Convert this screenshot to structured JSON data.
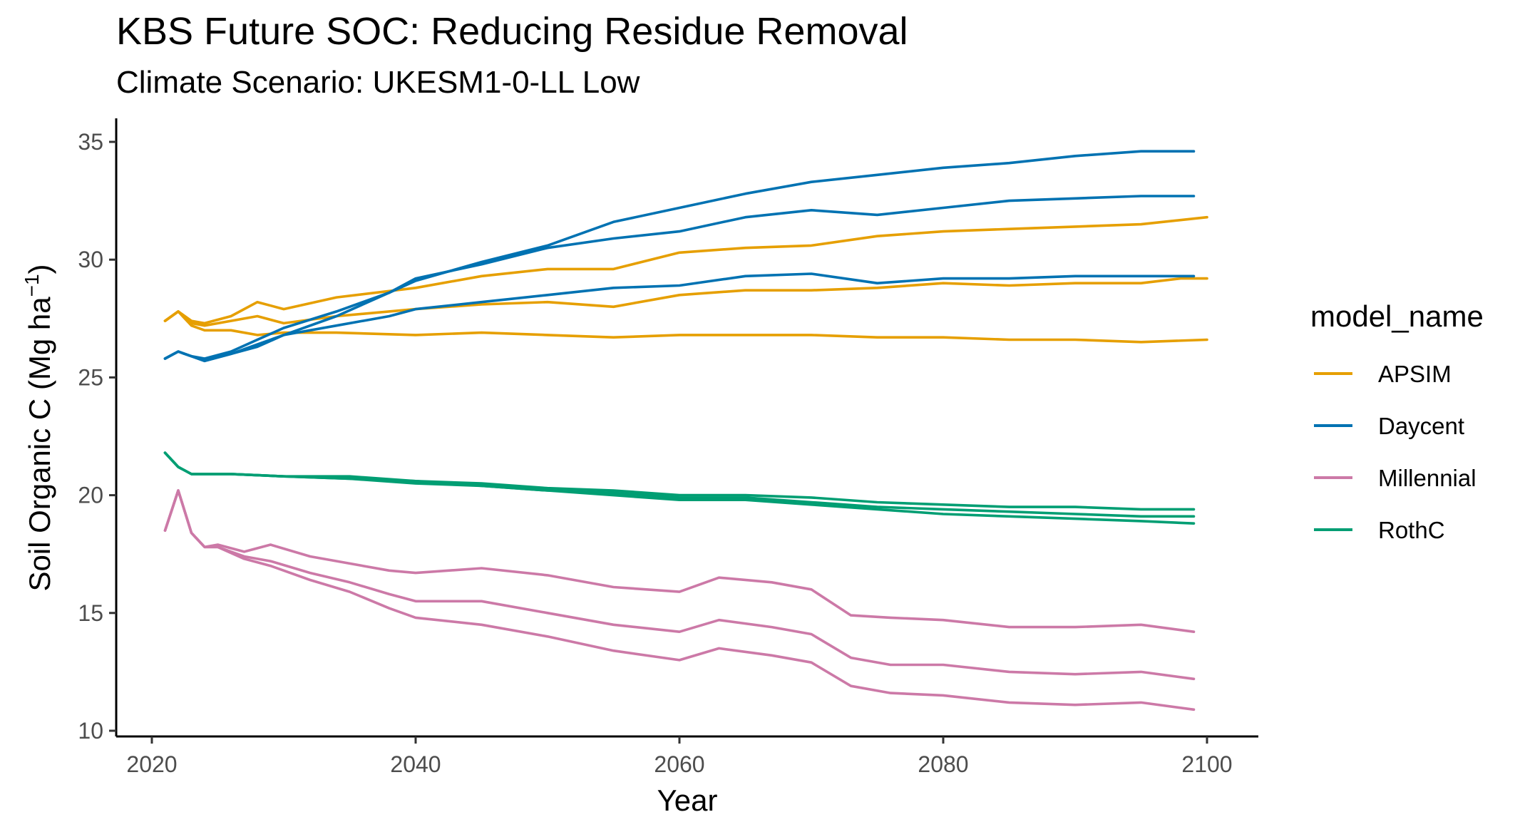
{
  "chart_data": {
    "type": "line",
    "title": "KBS  Future SOC: Reducing Residue Removal",
    "subtitle": "Climate Scenario: UKESM1-0-LL Low",
    "xlabel": "Year",
    "ylabel_prefix": "Soil Organic C (Mg ha",
    "ylabel_exponent": "−1",
    "ylabel_suffix": ")",
    "xlim": [
      2018,
      2102
    ],
    "ylim": [
      9.8,
      36
    ],
    "xticks": [
      2020,
      2040,
      2060,
      2080,
      2100
    ],
    "yticks": [
      10,
      15,
      20,
      25,
      30,
      35
    ],
    "grid": false,
    "legend": {
      "title": "model_name",
      "position": "right",
      "entries": [
        {
          "name": "APSIM",
          "color": "#E69F00"
        },
        {
          "name": "Daycent",
          "color": "#0072B2"
        },
        {
          "name": "Millennial",
          "color": "#CC79A7"
        },
        {
          "name": "RothC",
          "color": "#009E73"
        }
      ]
    },
    "series": [
      {
        "model": "APSIM",
        "color": "#E69F00",
        "points": [
          [
            2021,
            27.4
          ],
          [
            2022,
            27.8
          ],
          [
            2023,
            27.2
          ],
          [
            2024,
            27.0
          ],
          [
            2026,
            27.0
          ],
          [
            2028,
            26.8
          ],
          [
            2030,
            26.9
          ],
          [
            2034,
            26.9
          ],
          [
            2040,
            26.8
          ],
          [
            2045,
            26.9
          ],
          [
            2050,
            26.8
          ],
          [
            2055,
            26.7
          ],
          [
            2060,
            26.8
          ],
          [
            2065,
            26.8
          ],
          [
            2070,
            26.8
          ],
          [
            2075,
            26.7
          ],
          [
            2080,
            26.7
          ],
          [
            2085,
            26.6
          ],
          [
            2090,
            26.6
          ],
          [
            2095,
            26.5
          ],
          [
            2100,
            26.6
          ]
        ]
      },
      {
        "model": "APSIM",
        "color": "#E69F00",
        "points": [
          [
            2021,
            27.4
          ],
          [
            2022,
            27.8
          ],
          [
            2023,
            27.3
          ],
          [
            2024,
            27.2
          ],
          [
            2026,
            27.4
          ],
          [
            2028,
            27.6
          ],
          [
            2030,
            27.3
          ],
          [
            2034,
            27.6
          ],
          [
            2040,
            27.9
          ],
          [
            2045,
            28.1
          ],
          [
            2050,
            28.2
          ],
          [
            2055,
            28.0
          ],
          [
            2060,
            28.5
          ],
          [
            2065,
            28.7
          ],
          [
            2070,
            28.7
          ],
          [
            2075,
            28.8
          ],
          [
            2080,
            29.0
          ],
          [
            2085,
            28.9
          ],
          [
            2090,
            29.0
          ],
          [
            2095,
            29.0
          ],
          [
            2098,
            29.2
          ],
          [
            2100,
            29.2
          ]
        ]
      },
      {
        "model": "APSIM",
        "color": "#E69F00",
        "points": [
          [
            2021,
            27.4
          ],
          [
            2022,
            27.8
          ],
          [
            2023,
            27.4
          ],
          [
            2024,
            27.3
          ],
          [
            2026,
            27.6
          ],
          [
            2028,
            28.2
          ],
          [
            2030,
            27.9
          ],
          [
            2034,
            28.4
          ],
          [
            2040,
            28.8
          ],
          [
            2045,
            29.3
          ],
          [
            2050,
            29.6
          ],
          [
            2055,
            29.6
          ],
          [
            2060,
            30.3
          ],
          [
            2065,
            30.5
          ],
          [
            2070,
            30.6
          ],
          [
            2075,
            31.0
          ],
          [
            2080,
            31.2
          ],
          [
            2085,
            31.3
          ],
          [
            2090,
            31.4
          ],
          [
            2095,
            31.5
          ],
          [
            2100,
            31.8
          ]
        ]
      },
      {
        "model": "Daycent",
        "color": "#0072B2",
        "points": [
          [
            2021,
            25.8
          ],
          [
            2022,
            26.1
          ],
          [
            2023,
            25.9
          ],
          [
            2024,
            25.7
          ],
          [
            2026,
            26.0
          ],
          [
            2028,
            26.3
          ],
          [
            2030,
            26.8
          ],
          [
            2034,
            27.2
          ],
          [
            2038,
            27.6
          ],
          [
            2040,
            27.9
          ],
          [
            2045,
            28.2
          ],
          [
            2050,
            28.5
          ],
          [
            2055,
            28.8
          ],
          [
            2060,
            28.9
          ],
          [
            2065,
            29.3
          ],
          [
            2070,
            29.4
          ],
          [
            2075,
            29.0
          ],
          [
            2080,
            29.2
          ],
          [
            2085,
            29.2
          ],
          [
            2090,
            29.3
          ],
          [
            2095,
            29.3
          ],
          [
            2099,
            29.3
          ]
        ]
      },
      {
        "model": "Daycent",
        "color": "#0072B2",
        "points": [
          [
            2021,
            25.8
          ],
          [
            2022,
            26.1
          ],
          [
            2023,
            25.9
          ],
          [
            2024,
            25.8
          ],
          [
            2026,
            26.1
          ],
          [
            2028,
            26.6
          ],
          [
            2030,
            27.1
          ],
          [
            2034,
            27.8
          ],
          [
            2038,
            28.6
          ],
          [
            2040,
            29.2
          ],
          [
            2045,
            29.8
          ],
          [
            2050,
            30.5
          ],
          [
            2055,
            30.9
          ],
          [
            2060,
            31.2
          ],
          [
            2065,
            31.8
          ],
          [
            2070,
            32.1
          ],
          [
            2075,
            31.9
          ],
          [
            2080,
            32.2
          ],
          [
            2085,
            32.5
          ],
          [
            2090,
            32.6
          ],
          [
            2095,
            32.7
          ],
          [
            2099,
            32.7
          ]
        ]
      },
      {
        "model": "Daycent",
        "color": "#0072B2",
        "points": [
          [
            2021,
            25.8
          ],
          [
            2022,
            26.1
          ],
          [
            2023,
            25.9
          ],
          [
            2024,
            25.7
          ],
          [
            2026,
            26.0
          ],
          [
            2028,
            26.4
          ],
          [
            2030,
            26.8
          ],
          [
            2034,
            27.6
          ],
          [
            2038,
            28.6
          ],
          [
            2040,
            29.1
          ],
          [
            2045,
            29.9
          ],
          [
            2050,
            30.6
          ],
          [
            2055,
            31.6
          ],
          [
            2060,
            32.2
          ],
          [
            2065,
            32.8
          ],
          [
            2070,
            33.3
          ],
          [
            2075,
            33.6
          ],
          [
            2080,
            33.9
          ],
          [
            2085,
            34.1
          ],
          [
            2090,
            34.4
          ],
          [
            2095,
            34.6
          ],
          [
            2099,
            34.6
          ]
        ]
      },
      {
        "model": "Millennial",
        "color": "#CC79A7",
        "points": [
          [
            2021,
            18.5
          ],
          [
            2022,
            20.2
          ],
          [
            2023,
            18.4
          ],
          [
            2024,
            17.8
          ],
          [
            2025,
            17.9
          ],
          [
            2027,
            17.6
          ],
          [
            2029,
            17.9
          ],
          [
            2032,
            17.4
          ],
          [
            2035,
            17.1
          ],
          [
            2038,
            16.8
          ],
          [
            2040,
            16.7
          ],
          [
            2045,
            16.9
          ],
          [
            2050,
            16.6
          ],
          [
            2055,
            16.1
          ],
          [
            2060,
            15.9
          ],
          [
            2063,
            16.5
          ],
          [
            2067,
            16.3
          ],
          [
            2070,
            16.0
          ],
          [
            2073,
            14.9
          ],
          [
            2076,
            14.8
          ],
          [
            2080,
            14.7
          ],
          [
            2085,
            14.4
          ],
          [
            2090,
            14.4
          ],
          [
            2095,
            14.5
          ],
          [
            2099,
            14.2
          ]
        ]
      },
      {
        "model": "Millennial",
        "color": "#CC79A7",
        "points": [
          [
            2021,
            18.5
          ],
          [
            2022,
            20.2
          ],
          [
            2023,
            18.4
          ],
          [
            2024,
            17.8
          ],
          [
            2025,
            17.8
          ],
          [
            2027,
            17.4
          ],
          [
            2029,
            17.2
          ],
          [
            2032,
            16.7
          ],
          [
            2035,
            16.3
          ],
          [
            2038,
            15.8
          ],
          [
            2040,
            15.5
          ],
          [
            2045,
            15.5
          ],
          [
            2050,
            15.0
          ],
          [
            2055,
            14.5
          ],
          [
            2060,
            14.2
          ],
          [
            2063,
            14.7
          ],
          [
            2067,
            14.4
          ],
          [
            2070,
            14.1
          ],
          [
            2073,
            13.1
          ],
          [
            2076,
            12.8
          ],
          [
            2080,
            12.8
          ],
          [
            2085,
            12.5
          ],
          [
            2090,
            12.4
          ],
          [
            2095,
            12.5
          ],
          [
            2099,
            12.2
          ]
        ]
      },
      {
        "model": "Millennial",
        "color": "#CC79A7",
        "points": [
          [
            2021,
            18.5
          ],
          [
            2022,
            20.2
          ],
          [
            2023,
            18.4
          ],
          [
            2024,
            17.8
          ],
          [
            2025,
            17.8
          ],
          [
            2027,
            17.3
          ],
          [
            2029,
            17.0
          ],
          [
            2032,
            16.4
          ],
          [
            2035,
            15.9
          ],
          [
            2038,
            15.2
          ],
          [
            2040,
            14.8
          ],
          [
            2045,
            14.5
          ],
          [
            2050,
            14.0
          ],
          [
            2055,
            13.4
          ],
          [
            2060,
            13.0
          ],
          [
            2063,
            13.5
          ],
          [
            2067,
            13.2
          ],
          [
            2070,
            12.9
          ],
          [
            2073,
            11.9
          ],
          [
            2076,
            11.6
          ],
          [
            2080,
            11.5
          ],
          [
            2085,
            11.2
          ],
          [
            2090,
            11.1
          ],
          [
            2095,
            11.2
          ],
          [
            2099,
            10.9
          ]
        ]
      },
      {
        "model": "RothC",
        "color": "#009E73",
        "points": [
          [
            2021,
            21.8
          ],
          [
            2022,
            21.2
          ],
          [
            2023,
            20.9
          ],
          [
            2026,
            20.9
          ],
          [
            2030,
            20.8
          ],
          [
            2035,
            20.8
          ],
          [
            2040,
            20.6
          ],
          [
            2045,
            20.5
          ],
          [
            2050,
            20.3
          ],
          [
            2055,
            20.2
          ],
          [
            2060,
            20.0
          ],
          [
            2065,
            20.0
          ],
          [
            2070,
            19.9
          ],
          [
            2075,
            19.7
          ],
          [
            2080,
            19.6
          ],
          [
            2085,
            19.5
          ],
          [
            2090,
            19.5
          ],
          [
            2095,
            19.4
          ],
          [
            2099,
            19.4
          ]
        ]
      },
      {
        "model": "RothC",
        "color": "#009E73",
        "points": [
          [
            2021,
            21.8
          ],
          [
            2022,
            21.2
          ],
          [
            2023,
            20.9
          ],
          [
            2026,
            20.9
          ],
          [
            2030,
            20.8
          ],
          [
            2035,
            20.7
          ],
          [
            2040,
            20.6
          ],
          [
            2045,
            20.4
          ],
          [
            2050,
            20.2
          ],
          [
            2055,
            20.1
          ],
          [
            2060,
            19.9
          ],
          [
            2065,
            19.9
          ],
          [
            2070,
            19.7
          ],
          [
            2075,
            19.5
          ],
          [
            2080,
            19.4
          ],
          [
            2085,
            19.3
          ],
          [
            2090,
            19.2
          ],
          [
            2095,
            19.1
          ],
          [
            2099,
            19.1
          ]
        ]
      },
      {
        "model": "RothC",
        "color": "#009E73",
        "points": [
          [
            2021,
            21.8
          ],
          [
            2022,
            21.2
          ],
          [
            2023,
            20.9
          ],
          [
            2026,
            20.9
          ],
          [
            2030,
            20.8
          ],
          [
            2035,
            20.7
          ],
          [
            2040,
            20.5
          ],
          [
            2045,
            20.4
          ],
          [
            2050,
            20.2
          ],
          [
            2055,
            20.0
          ],
          [
            2060,
            19.8
          ],
          [
            2065,
            19.8
          ],
          [
            2070,
            19.6
          ],
          [
            2075,
            19.4
          ],
          [
            2080,
            19.2
          ],
          [
            2085,
            19.1
          ],
          [
            2090,
            19.0
          ],
          [
            2095,
            18.9
          ],
          [
            2099,
            18.8
          ]
        ]
      }
    ]
  }
}
